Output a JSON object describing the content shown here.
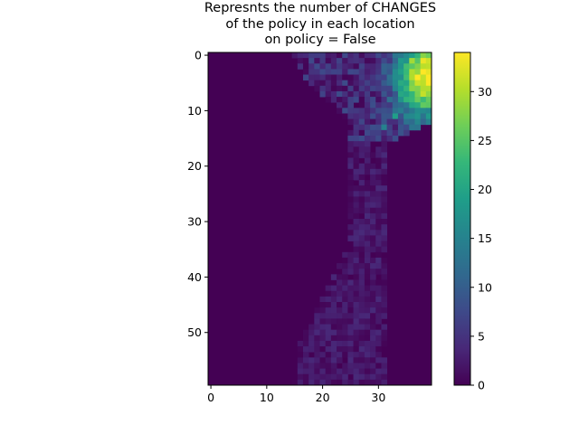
{
  "chart_data": {
    "type": "heatmap",
    "title_lines": [
      "Represnts the number of CHANGES",
      "of the policy in each location",
      "on policy = False"
    ],
    "grid": {
      "columns": 40,
      "rows": 60
    },
    "xticks": [
      0,
      10,
      20,
      30
    ],
    "yticks": [
      0,
      10,
      20,
      30,
      40,
      50
    ],
    "colorbar": {
      "min": 0,
      "max": 34,
      "ticks": [
        0,
        5,
        10,
        15,
        20,
        25,
        30
      ],
      "colormap": "viridis"
    },
    "background_value": 0,
    "nonzero_region": {
      "description": "values > 0 only to the right of left_edge per row",
      "left_edge_by_row": [
        [
          0,
          15
        ],
        [
          4,
          17
        ],
        [
          8,
          21
        ],
        [
          12,
          25
        ],
        [
          20,
          25
        ],
        [
          34,
          25
        ],
        [
          40,
          22
        ],
        [
          46,
          19
        ],
        [
          52,
          16
        ],
        [
          59,
          15
        ]
      ],
      "right_edge_by_row": [
        [
          0,
          39
        ],
        [
          12,
          39
        ],
        [
          14,
          35
        ],
        [
          16,
          31
        ],
        [
          59,
          31
        ]
      ]
    },
    "peak_cells": [
      {
        "col": 38,
        "row": 1,
        "value": 33
      },
      {
        "col": 37,
        "row": 4,
        "value": 34
      },
      {
        "col": 38,
        "row": 6,
        "value": 30
      },
      {
        "col": 36,
        "row": 3,
        "value": 30
      },
      {
        "col": 35,
        "row": 8,
        "value": 22
      },
      {
        "col": 33,
        "row": 11,
        "value": 19
      },
      {
        "col": 31,
        "row": 13,
        "value": 15
      }
    ]
  },
  "colors": {
    "viridis": [
      "#440154",
      "#482878",
      "#3e4989",
      "#31688e",
      "#26828e",
      "#1f9e89",
      "#35b779",
      "#6ece58",
      "#b5de2b",
      "#fde725"
    ]
  }
}
